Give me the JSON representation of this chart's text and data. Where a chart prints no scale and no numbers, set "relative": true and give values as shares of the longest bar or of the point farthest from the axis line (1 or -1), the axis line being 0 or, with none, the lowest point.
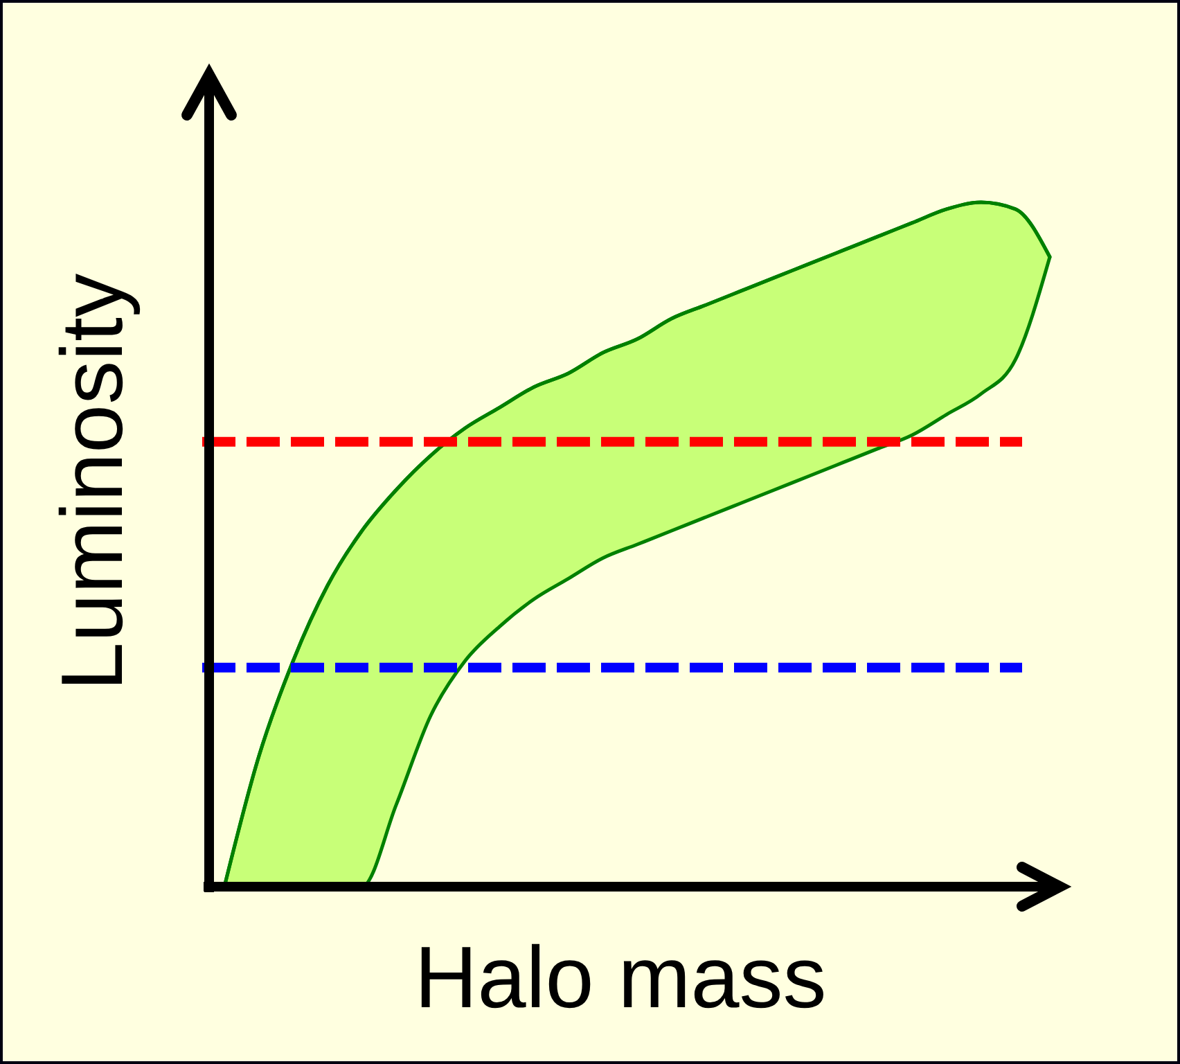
{
  "chart_data": {
    "type": "line",
    "relative": true,
    "xlabel": "Halo mass",
    "ylabel": "Luminosity",
    "line_style": "solid",
    "marker": "none",
    "categories": [
      null,
      null,
      null,
      null,
      null,
      null,
      null,
      null,
      null,
      null,
      null,
      null,
      null,
      null,
      null,
      null,
      null,
      null,
      null,
      null,
      null,
      null,
      null,
      null,
      null
    ],
    "series": [
      {
        "color": "#008000",
        "values": [
          0,
          0.19,
          0.33,
          0.44,
          0.52,
          0.58,
          0.63,
          0.67,
          0.7,
          0.73,
          0.75,
          0.78,
          0.8,
          0.83,
          0.85,
          0.87,
          0.89,
          0.91,
          0.93,
          0.95,
          0.97,
          0.99,
          1,
          0.99,
          0.92
        ],
        "lower": [
          0,
          0,
          0,
          0,
          0,
          0.12,
          0.25,
          0.33,
          0.38,
          0.42,
          0.45,
          0.48,
          0.5,
          0.52,
          0.54,
          0.56,
          0.58,
          0.6,
          0.62,
          0.64,
          0.66,
          0.69,
          0.72,
          0.77,
          0.92
        ],
        "upper": [
          0,
          0.19,
          0.33,
          0.44,
          0.52,
          0.58,
          0.63,
          0.67,
          0.7,
          0.73,
          0.75,
          0.78,
          0.8,
          0.83,
          0.85,
          0.87,
          0.89,
          0.91,
          0.93,
          0.95,
          0.97,
          0.99,
          1,
          0.99,
          0.92
        ]
      }
    ],
    "ref_lines": [
      {
        "axis": "y",
        "value": 0.65,
        "color": "#ff0000",
        "line_style": "dashed"
      },
      {
        "axis": "y",
        "value": 0.32,
        "color": "#0000ff",
        "line_style": "dashed"
      }
    ]
  }
}
